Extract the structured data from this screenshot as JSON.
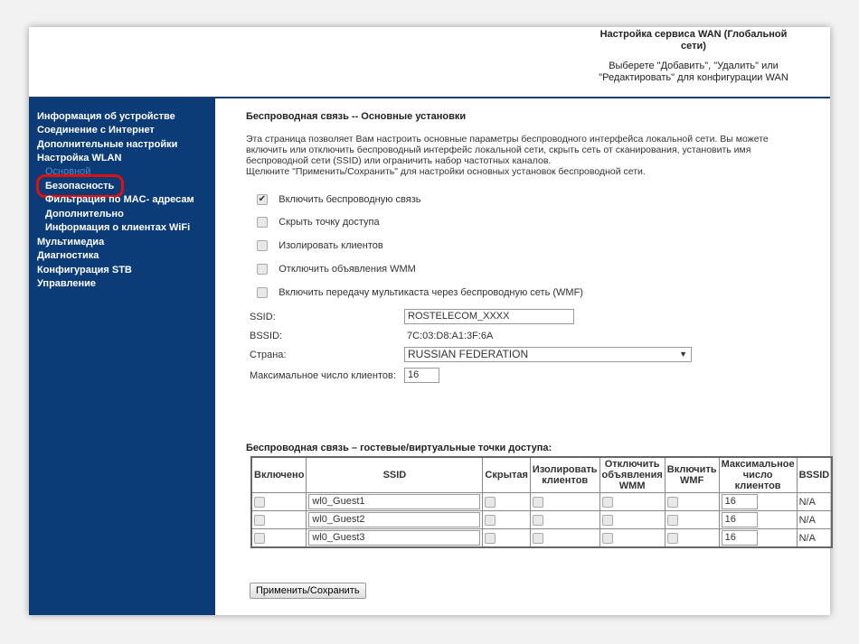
{
  "header": {
    "title": "Настройка сервиса WAN (Глобальной сети)",
    "subtitle": "Выберете \"Добавить\", \"Удалить\" или \"Редактировать\" для конфигурации WAN"
  },
  "sidebar": {
    "items": [
      {
        "label": "Информация об устройстве"
      },
      {
        "label": "Соединение с Интернет"
      },
      {
        "label": "Дополнительные настройки"
      },
      {
        "label": "Настройка WLAN"
      },
      {
        "label": "Основной"
      },
      {
        "label": "Безопасность"
      },
      {
        "label": "Фильтрация по MAC- адресам"
      },
      {
        "label": "Дополнительно"
      },
      {
        "label": "Информация о клиентах WiFi"
      },
      {
        "label": "Мультимедиа"
      },
      {
        "label": "Диагностика"
      },
      {
        "label": "Конфигурация STB"
      },
      {
        "label": "Управление"
      }
    ]
  },
  "main": {
    "title": "Беспроводная связь -- Основные установки",
    "desc1": "Эта страница позволяет Вам настроить основные параметры беспроводного интерфейса локальной сети. Вы можете",
    "desc2": "включить или отключить беспроводный интерфейс локальной сети, скрыть сеть от сканирования, установить имя",
    "desc3": "беспроводной сети (SSID) или ограничить набор частотных каналов.",
    "desc4": "Щелкните \"Применить/Сохранить\" для настройки основных установок беспроводной сети.",
    "options": [
      {
        "label": "Включить беспроводную связь",
        "checked": true
      },
      {
        "label": "Скрыть точку доступа",
        "checked": false
      },
      {
        "label": "Изолировать клиентов",
        "checked": false
      },
      {
        "label": "Отключить объявления WMM",
        "checked": false
      },
      {
        "label": "Включить передачу мультикаста через беспроводную сеть (WMF)",
        "checked": false
      }
    ],
    "ssid_label": "SSID:",
    "ssid_value": "ROSTELECOM_XXXX",
    "bssid_label": "BSSID:",
    "bssid_value": "7C:03:D8:A1:3F:6A",
    "country_label": "Страна:",
    "country_value": "RUSSIAN FEDERATION",
    "max_label": "Максимальное число клиентов:",
    "max_value": "16",
    "guest_title": "Беспроводная связь – гостевые/виртуальные точки доступа:",
    "columns": [
      "Включено",
      "SSID",
      "Скрытая",
      "Изолировать клиентов",
      "Отключить объявления WMM",
      "Включить WMF",
      "Максимальное число клиентов",
      "BSSID"
    ],
    "rows": [
      {
        "ssid": "wl0_Guest1",
        "max": "16",
        "bssid": "N/A"
      },
      {
        "ssid": "wl0_Guest2",
        "max": "16",
        "bssid": "N/A"
      },
      {
        "ssid": "wl0_Guest3",
        "max": "16",
        "bssid": "N/A"
      }
    ],
    "apply_label": "Применить/Сохранить"
  }
}
